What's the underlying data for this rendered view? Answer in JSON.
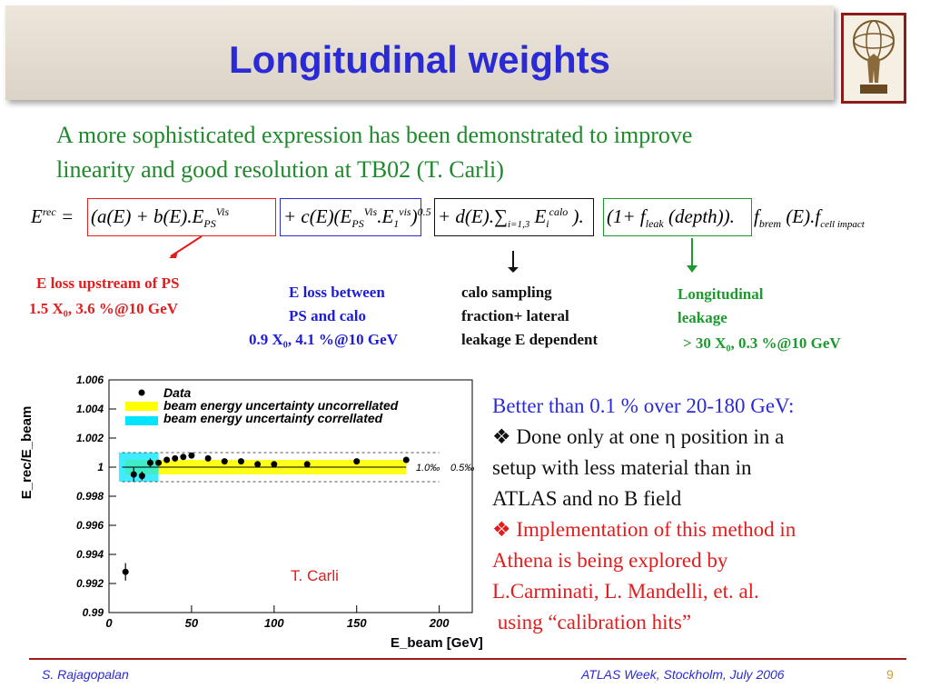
{
  "title": "Longitudinal weights",
  "intro": [
    "A more sophisticated expression has been demonstrated to improve",
    "linearity and good resolution at TB02 (T. Carli)"
  ],
  "annotations": {
    "upstream": [
      "E loss upstream of PS",
      "1.5 X₀, 3.6 %@10 GeV"
    ],
    "between": [
      "E loss between",
      "PS and calo",
      "0.9 X₀, 4.1 %@10 GeV"
    ],
    "calo": [
      "calo sampling",
      "fraction+ lateral",
      "leakage E dependent"
    ],
    "leakage": [
      "Longitudinal",
      "leakage",
      "> 30 X₀, 0.3 %@10 GeV"
    ]
  },
  "right_text": {
    "line1": "Better than 0.1 % over 20-180 GeV:",
    "bullet1": [
      "❖ Done only at one η position in a",
      "setup with less material than in",
      "ATLAS and no B field"
    ],
    "bullet2": [
      "❖ Implementation of this method in",
      "Athena is being explored by",
      "L.Carminati, L. Mandelli, et. al.",
      " using “calibration hits”"
    ]
  },
  "footer": {
    "author": "S. Rajagopalan",
    "event": "ATLAS Week, Stockholm, July 2006",
    "page": "9"
  },
  "chart_data": {
    "type": "scatter",
    "xlabel": "E_beam [GeV]",
    "ylabel": "E_rec/E_beam",
    "xlim": [
      0,
      220
    ],
    "ylim": [
      0.99,
      1.006
    ],
    "xticks": [
      "0",
      "50",
      "100",
      "150",
      "200"
    ],
    "yticks": [
      "0.99",
      "0.992",
      "0.994",
      "0.996",
      "0.998",
      "1",
      "1.002",
      "1.004",
      "1.006"
    ],
    "legend": [
      "Data",
      "beam energy uncertainty uncorrellated",
      "beam energy uncertainty correllated"
    ],
    "annotation_text": "T. Carli",
    "band_labels": [
      "1.0‰",
      "0.5‰"
    ],
    "series": [
      {
        "name": "Data",
        "x": [
          10,
          15,
          20,
          25,
          30,
          35,
          40,
          45,
          50,
          60,
          70,
          80,
          90,
          100,
          120,
          150,
          180
        ],
        "y": [
          0.9928,
          0.9995,
          0.9994,
          1.0003,
          1.0003,
          1.0005,
          1.0006,
          1.0007,
          1.0008,
          1.0006,
          1.0004,
          1.0004,
          1.0002,
          1.0002,
          1.0002,
          1.0004,
          1.0005
        ],
        "yerr": [
          0.0006,
          0.0005,
          0.0003,
          0.0003,
          0.0002,
          0.0002,
          0.0002,
          0.0002,
          0.0002,
          0.0001,
          0.0001,
          0.0001,
          0.0001,
          0.0001,
          0.0001,
          0.0001,
          0.0001
        ]
      }
    ]
  }
}
